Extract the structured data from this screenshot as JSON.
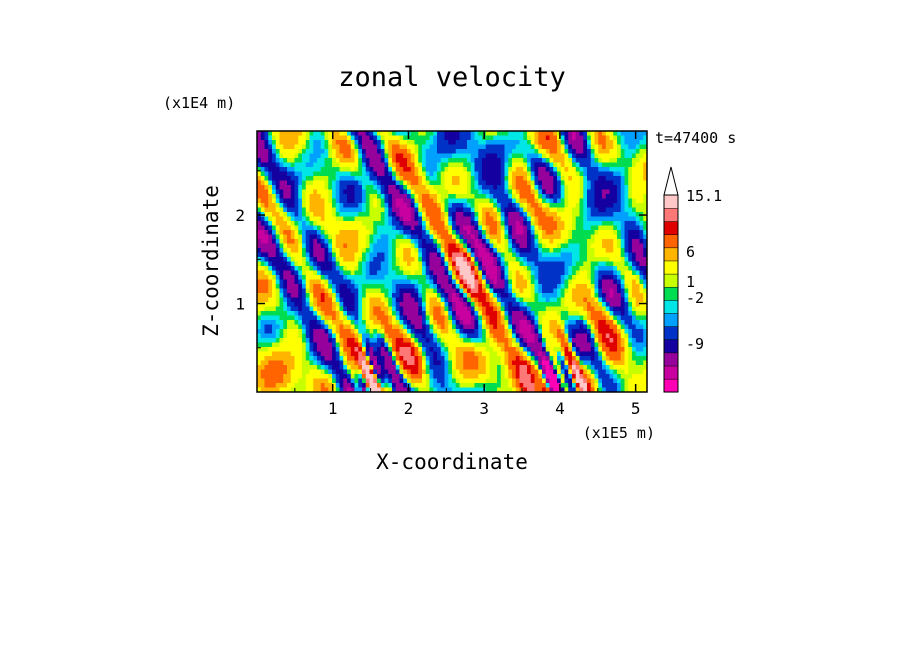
{
  "chart_data": {
    "type": "heatmap",
    "title": "zonal velocity",
    "xlabel": "X-coordinate",
    "ylabel": "Z-coordinate",
    "x_unit": "(x1E5 m)",
    "y_unit": "(x1E4 m)",
    "time_label": "t=47400 s",
    "xlim": [
      0,
      5.15
    ],
    "ylim": [
      0,
      2.95
    ],
    "x_ticks": [
      "1",
      "2",
      "3",
      "4",
      "5"
    ],
    "y_ticks": [
      "1",
      "2"
    ],
    "colorbar": {
      "labels": [
        "15.1",
        "6",
        "1",
        "-2",
        "-9"
      ],
      "levels": [
        -15,
        -12,
        -9,
        -6,
        -4,
        -2,
        -1,
        0,
        1,
        2,
        4,
        6,
        9,
        12,
        15.1
      ],
      "colors": [
        "#ff00b4",
        "#c800a0",
        "#96009b",
        "#1400a0",
        "#0032c8",
        "#00a0ff",
        "#00e6e6",
        "#00dc50",
        "#c8ff00",
        "#ffff00",
        "#ffb400",
        "#ff6400",
        "#e10000",
        "#ff7878",
        "#ffc8c8"
      ]
    }
  }
}
